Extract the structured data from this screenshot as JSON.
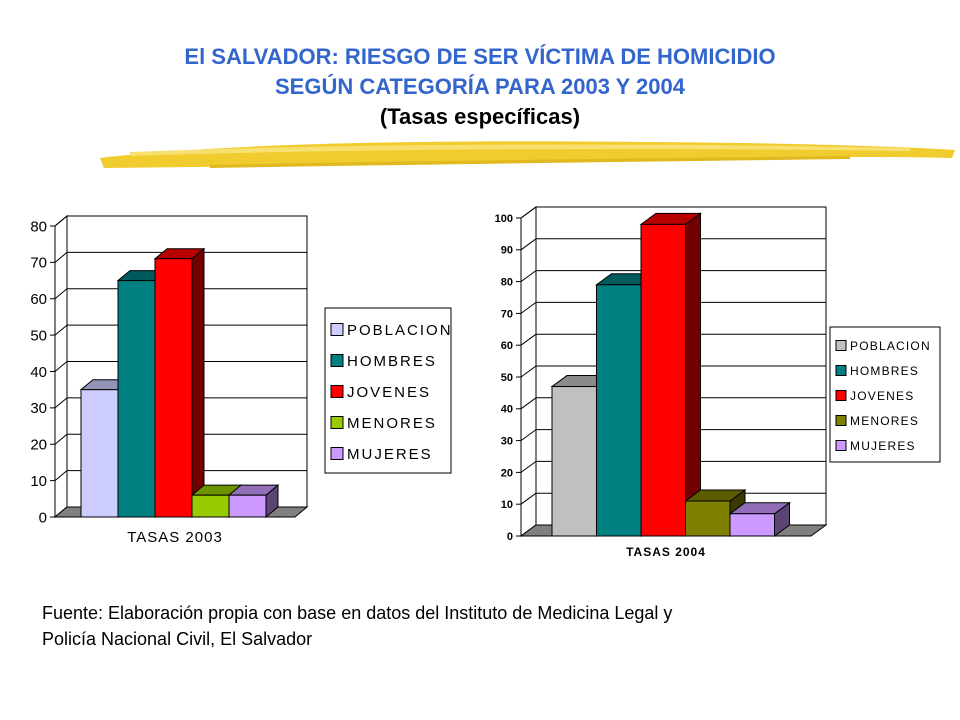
{
  "title": {
    "line1": "El SALVADOR: RIESGO DE SER VÍCTIMA DE HOMICIDIO",
    "line2": "SEGÚN CATEGORÍA PARA 2003 Y 2004",
    "line3": "(Tasas específicas)"
  },
  "source": {
    "line1": "Fuente: Elaboración propia con base en datos del Instituto de Medicina Legal y",
    "line2": "Policía Nacional Civil, El Salvador"
  },
  "chart_data": [
    {
      "type": "bar",
      "title": "",
      "xlabel": "TASAS 2003",
      "ylabel": "",
      "categories": [
        "TASAS 2003"
      ],
      "ylim": [
        0,
        80
      ],
      "yticks": [
        0,
        10,
        20,
        30,
        40,
        50,
        60,
        70,
        80
      ],
      "grid": true,
      "legend": "right",
      "series": [
        {
          "name": "POBLACION",
          "values": [
            35
          ],
          "color": "#ccccff"
        },
        {
          "name": "HOMBRES",
          "values": [
            65
          ],
          "color": "#008080"
        },
        {
          "name": "JOVENES",
          "values": [
            71
          ],
          "color": "#ff0000"
        },
        {
          "name": "MENORES",
          "values": [
            6
          ],
          "color": "#99cc00"
        },
        {
          "name": "MUJERES",
          "values": [
            6
          ],
          "color": "#cc99ff"
        }
      ]
    },
    {
      "type": "bar",
      "title": "",
      "xlabel": "TASAS 2004",
      "ylabel": "",
      "categories": [
        "TASAS 2004"
      ],
      "ylim": [
        0,
        100
      ],
      "yticks": [
        0,
        10,
        20,
        30,
        40,
        50,
        60,
        70,
        80,
        90,
        100
      ],
      "grid": true,
      "legend": "right",
      "series": [
        {
          "name": "POBLACION",
          "values": [
            47
          ],
          "color": "#c0c0c0"
        },
        {
          "name": "HOMBRES",
          "values": [
            79
          ],
          "color": "#008080"
        },
        {
          "name": "JOVENES",
          "values": [
            98
          ],
          "color": "#ff0000"
        },
        {
          "name": "MENORES",
          "values": [
            11
          ],
          "color": "#808000"
        },
        {
          "name": "MUJERES",
          "values": [
            7
          ],
          "color": "#cc99ff"
        }
      ]
    }
  ]
}
